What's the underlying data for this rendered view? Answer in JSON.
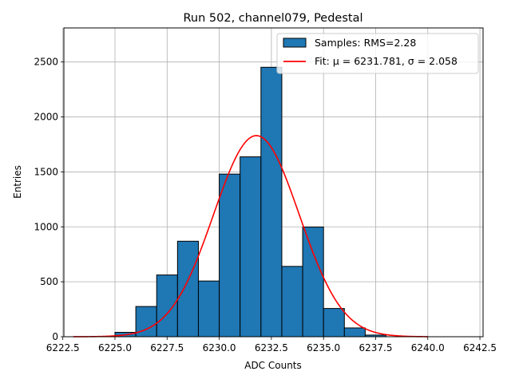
{
  "chart_data": {
    "type": "histogram",
    "title": "Run 502, channel079, Pedestal",
    "xlabel": "ADC Counts",
    "ylabel": "Entries",
    "xlim": [
      6222.55,
      6242.65
    ],
    "ylim": [
      0,
      2810
    ],
    "x_ticks": [
      6222.5,
      6225.0,
      6227.5,
      6230.0,
      6232.5,
      6235.0,
      6237.5,
      6240.0,
      6242.5
    ],
    "x_tick_labels": [
      "6222.5",
      "6225.0",
      "6227.5",
      "6230.0",
      "6232.5",
      "6235.0",
      "6237.5",
      "6240.0",
      "6242.5"
    ],
    "y_ticks": [
      0,
      500,
      1000,
      1500,
      2000,
      2500
    ],
    "y_tick_labels": [
      "0",
      "500",
      "1000",
      "1500",
      "2000",
      "2500"
    ],
    "grid": true,
    "legend_position": "top-right",
    "bins": [
      {
        "x0": 6225.0,
        "x1": 6226.0,
        "count": 40
      },
      {
        "x0": 6226.0,
        "x1": 6227.0,
        "count": 275
      },
      {
        "x0": 6227.0,
        "x1": 6228.0,
        "count": 562
      },
      {
        "x0": 6228.0,
        "x1": 6229.0,
        "count": 869
      },
      {
        "x0": 6229.0,
        "x1": 6230.0,
        "count": 507
      },
      {
        "x0": 6230.0,
        "x1": 6231.0,
        "count": 1480
      },
      {
        "x0": 6231.0,
        "x1": 6232.0,
        "count": 1637
      },
      {
        "x0": 6232.0,
        "x1": 6233.0,
        "count": 2452
      },
      {
        "x0": 6233.0,
        "x1": 6234.0,
        "count": 640
      },
      {
        "x0": 6234.0,
        "x1": 6235.0,
        "count": 998
      },
      {
        "x0": 6235.0,
        "x1": 6236.0,
        "count": 257
      },
      {
        "x0": 6236.0,
        "x1": 6237.0,
        "count": 80
      },
      {
        "x0": 6237.0,
        "x1": 6238.0,
        "count": 15
      }
    ],
    "bar_color": "#1f77b4",
    "bar_edge_color": "#000000",
    "fit": {
      "mu": 6231.781,
      "sigma": 2.058,
      "amplitude": 1830,
      "x_range": [
        6223.0,
        6240.0
      ],
      "color": "#ff0000"
    },
    "legend": [
      {
        "label": "Samples: RMS=2.28",
        "kind": "patch"
      },
      {
        "label": "Fit: μ = 6231.781, σ = 2.058",
        "kind": "line"
      }
    ]
  }
}
